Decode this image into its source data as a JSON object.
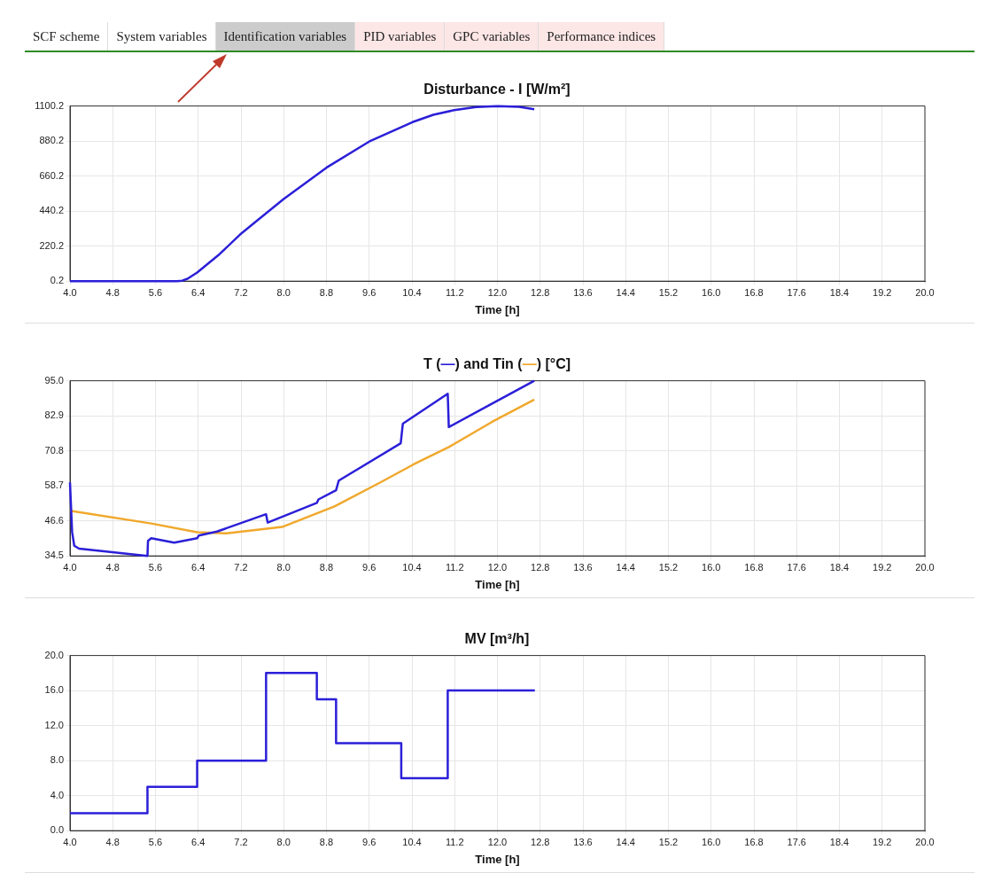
{
  "chart_data": [
    {
      "type": "other",
      "categories": [
        "SCF scheme",
        "System variables",
        "Identification variables",
        "PID variables",
        "GPC variables",
        "Performance indices"
      ],
      "colors": [
        "#ffffff",
        "#ffffff",
        "#cccccc",
        "#fde6e6",
        "#fde6e6",
        "#fde6e6"
      ]
    },
    {
      "type": "line",
      "title": "Disturbance - I [W/m²]",
      "xlabel": "Time [h]",
      "grid": true,
      "xlim": [
        4,
        20
      ],
      "xticks": [
        {
          "value": 4,
          "label": "4.0"
        },
        {
          "value": 4.8,
          "label": "4.8"
        },
        {
          "value": 5.6,
          "label": "5.6"
        },
        {
          "value": 6.4,
          "label": "6.4"
        },
        {
          "value": 7.2,
          "label": "7.2"
        },
        {
          "value": 8,
          "label": "8.0"
        },
        {
          "value": 8.8,
          "label": "8.8"
        },
        {
          "value": 9.6,
          "label": "9.6"
        },
        {
          "value": 10.4,
          "label": "10.4"
        },
        {
          "value": 11.2,
          "label": "11.2"
        },
        {
          "value": 12,
          "label": "12.0"
        },
        {
          "value": 12.8,
          "label": "12.8"
        },
        {
          "value": 13.6,
          "label": "13.6"
        },
        {
          "value": 14.4,
          "label": "14.4"
        },
        {
          "value": 15.2,
          "label": "15.2"
        },
        {
          "value": 16,
          "label": "16.0"
        },
        {
          "value": 16.8,
          "label": "16.8"
        },
        {
          "value": 17.6,
          "label": "17.6"
        },
        {
          "value": 18.4,
          "label": "18.4"
        },
        {
          "value": 19.2,
          "label": "19.2"
        },
        {
          "value": 20,
          "label": "20.0"
        }
      ],
      "ylim": [
        0.2,
        1100.2
      ],
      "yticks": [
        0.2,
        220.2,
        440.2,
        660.2,
        880.2,
        1100.2
      ],
      "series": [
        {
          "color": "#2b1fd8",
          "x": [
            4,
            5.0,
            6.0,
            6.1,
            6.2,
            6.38,
            6.8,
            7.21,
            8.0,
            8.8,
            9.6,
            10.41,
            10.8,
            11.19,
            11.6,
            12.0,
            12.4,
            12.69
          ],
          "values": [
            0.2,
            0.2,
            0.2,
            3,
            15,
            54,
            170,
            301,
            516,
            713,
            877,
            999,
            1045,
            1074,
            1094,
            1100,
            1095,
            1080
          ]
        }
      ]
    },
    {
      "type": "line",
      "title": "T (—) and Tin (—) [°C]",
      "xlabel": "Time [h]",
      "grid": true,
      "xlim": [
        4,
        20
      ],
      "xticks": [
        {
          "value": 4,
          "label": "4.0"
        },
        {
          "value": 4.8,
          "label": "4.8"
        },
        {
          "value": 5.6,
          "label": "5.6"
        },
        {
          "value": 6.4,
          "label": "6.4"
        },
        {
          "value": 7.2,
          "label": "7.2"
        },
        {
          "value": 8,
          "label": "8.0"
        },
        {
          "value": 8.8,
          "label": "8.8"
        },
        {
          "value": 9.6,
          "label": "9.6"
        },
        {
          "value": 10.4,
          "label": "10.4"
        },
        {
          "value": 11.2,
          "label": "11.2"
        },
        {
          "value": 12,
          "label": "12.0"
        },
        {
          "value": 12.8,
          "label": "12.8"
        },
        {
          "value": 13.6,
          "label": "13.6"
        },
        {
          "value": 14.4,
          "label": "14.4"
        },
        {
          "value": 15.2,
          "label": "15.2"
        },
        {
          "value": 16,
          "label": "16.0"
        },
        {
          "value": 16.8,
          "label": "16.8"
        },
        {
          "value": 17.6,
          "label": "17.6"
        },
        {
          "value": 18.4,
          "label": "18.4"
        },
        {
          "value": 19.2,
          "label": "19.2"
        },
        {
          "value": 20,
          "label": "20.0"
        }
      ],
      "ylim": [
        34.5,
        95
      ],
      "yticks": [
        34.5,
        46.6,
        58.7,
        70.8,
        82.9,
        {
          "value": 95,
          "label": "95.0"
        }
      ],
      "series": [
        {
          "color": "#2b1fd8",
          "x": [
            4,
            4.04,
            4.08,
            4.17,
            5.45,
            5.46,
            5.52,
            5.95,
            6.38,
            6.41,
            6.75,
            7.67,
            7.7,
            8.62,
            8.65,
            8.98,
            9.03,
            10.19,
            10.23,
            11.07,
            11.09,
            11.9,
            12.69
          ],
          "values": [
            59.9,
            42.7,
            38,
            37,
            34.5,
            39.7,
            40.6,
            39.1,
            40.6,
            41.5,
            42.9,
            48.9,
            46,
            52.8,
            54,
            57.2,
            60.5,
            73.4,
            80.2,
            90.5,
            79,
            87.1,
            95
          ]
        },
        {
          "color": "#f0a82c",
          "x": [
            4,
            5.52,
            6.38,
            6.93,
            7.97,
            8.95,
            9.81,
            10.43,
            11.1,
            11.9,
            12.69
          ],
          "values": [
            50.1,
            45.7,
            42.7,
            42.3,
            44.5,
            51.6,
            59.9,
            66.1,
            72.2,
            80.8,
            88.5
          ]
        }
      ]
    },
    {
      "type": "step",
      "title": "MV [m³/h]",
      "xlabel": "Time [h]",
      "grid": true,
      "xlim": [
        4,
        20
      ],
      "xticks": [
        {
          "value": 4,
          "label": "4.0"
        },
        {
          "value": 4.8,
          "label": "4.8"
        },
        {
          "value": 5.6,
          "label": "5.6"
        },
        {
          "value": 6.4,
          "label": "6.4"
        },
        {
          "value": 7.2,
          "label": "7.2"
        },
        {
          "value": 8,
          "label": "8.0"
        },
        {
          "value": 8.8,
          "label": "8.8"
        },
        {
          "value": 9.6,
          "label": "9.6"
        },
        {
          "value": 10.4,
          "label": "10.4"
        },
        {
          "value": 11.2,
          "label": "11.2"
        },
        {
          "value": 12,
          "label": "12.0"
        },
        {
          "value": 12.8,
          "label": "12.8"
        },
        {
          "value": 13.6,
          "label": "13.6"
        },
        {
          "value": 14.4,
          "label": "14.4"
        },
        {
          "value": 15.2,
          "label": "15.2"
        },
        {
          "value": 16,
          "label": "16.0"
        },
        {
          "value": 16.8,
          "label": "16.8"
        },
        {
          "value": 17.6,
          "label": "17.6"
        },
        {
          "value": 18.4,
          "label": "18.4"
        },
        {
          "value": 19.2,
          "label": "19.2"
        },
        {
          "value": 20,
          "label": "20.0"
        }
      ],
      "ylim": [
        0,
        20
      ],
      "yticks": [
        {
          "value": 0,
          "label": "0.0"
        },
        {
          "value": 4,
          "label": "4.0"
        },
        {
          "value": 8,
          "label": "8.0"
        },
        {
          "value": 12,
          "label": "12.0"
        },
        {
          "value": 16,
          "label": "16.0"
        },
        {
          "value": 20,
          "label": "20.0"
        }
      ],
      "series": [
        {
          "color": "#2b1fd8",
          "x": [
            4,
            5.45,
            6.38,
            7.67,
            8.62,
            8.98,
            10.2,
            11.07,
            12.7
          ],
          "values": [
            2,
            5,
            8,
            18,
            15,
            10,
            6,
            16,
            16
          ]
        }
      ]
    }
  ]
}
